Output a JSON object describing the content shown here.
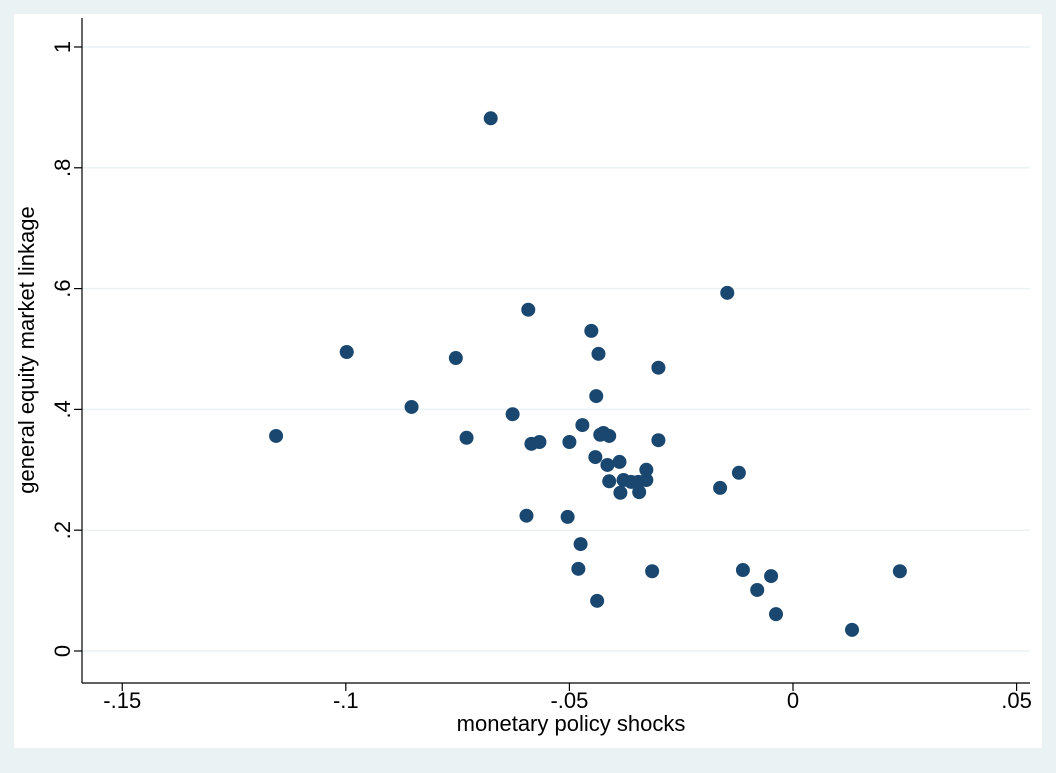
{
  "chart_data": {
    "type": "scatter",
    "x_label": "monetary policy shocks",
    "y_label": "general equity market linkage",
    "color": "#1a476f",
    "grid": true,
    "xlim": [
      -0.159,
      0.053
    ],
    "ylim": [
      -0.053,
      1.048
    ],
    "xticks": [
      {
        "value": -0.15,
        "label": "-.15"
      },
      {
        "value": -0.1,
        "label": "-.1"
      },
      {
        "value": -0.05,
        "label": "-.05"
      },
      0,
      {
        "value": 0.05,
        "label": ".05"
      }
    ],
    "yticks": [
      0,
      {
        "value": 0.2,
        "label": ".2"
      },
      {
        "value": 0.4,
        "label": ".4"
      },
      {
        "value": 0.6,
        "label": ".6"
      },
      {
        "value": 0.8,
        "label": ".8"
      },
      1
    ],
    "x": [
      -0.1156,
      -0.0998,
      -0.0853,
      -0.0754,
      -0.073,
      -0.0676,
      -0.0627,
      -0.0592,
      -0.0585,
      -0.0567,
      -0.0596,
      -0.05,
      -0.0504,
      -0.0471,
      -0.0475,
      -0.048,
      -0.0451,
      -0.0435,
      -0.044,
      -0.0442,
      -0.0431,
      -0.0424,
      -0.0411,
      -0.0438,
      -0.0415,
      -0.0411,
      -0.0388,
      -0.0386,
      -0.0379,
      -0.0362,
      -0.0346,
      -0.0344,
      -0.0328,
      -0.0328,
      -0.0315,
      -0.0301,
      -0.0301,
      -0.0147,
      -0.0163,
      -0.0121,
      -0.0112,
      -0.008,
      -0.0049,
      -0.0038,
      0.0132,
      0.0239
    ],
    "values": [
      0.356,
      0.495,
      0.404,
      0.485,
      0.353,
      0.882,
      0.392,
      0.565,
      0.343,
      0.346,
      0.224,
      0.346,
      0.222,
      0.374,
      0.177,
      0.136,
      0.53,
      0.492,
      0.422,
      0.321,
      0.358,
      0.361,
      0.356,
      0.083,
      0.308,
      0.281,
      0.313,
      0.262,
      0.283,
      0.28,
      0.28,
      0.263,
      0.3,
      0.283,
      0.132,
      0.349,
      0.469,
      0.593,
      0.27,
      0.295,
      0.134,
      0.101,
      0.124,
      0.061,
      0.035,
      0.132
    ]
  }
}
